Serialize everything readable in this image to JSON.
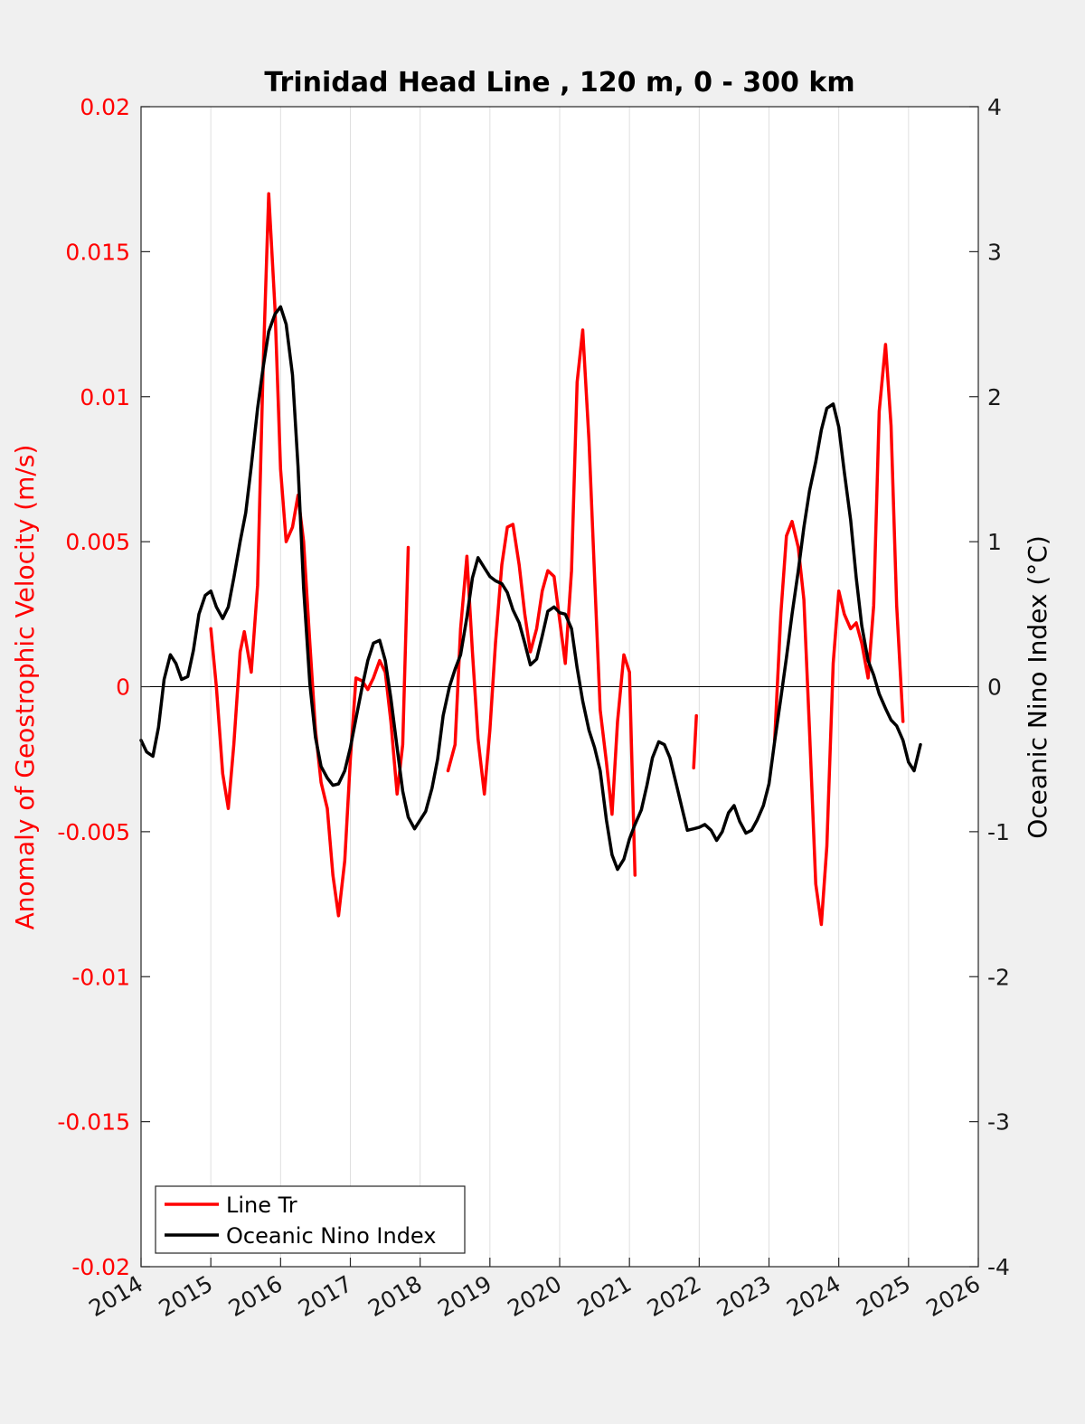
{
  "colors": {
    "background": "#f0f0f0",
    "plot_area": "#ffffff",
    "series_red": "#ff0000",
    "series_black": "#000000",
    "gridline": "#dfdfdf"
  },
  "chart_data": {
    "type": "line",
    "title": "Trinidad Head Line , 120 m, 0 - 300 km",
    "xlabel": "",
    "ylabel_left": "Anomaly of Geostrophic Velocity (m/s)",
    "ylabel_right": "Oceanic Nino Index (°C)",
    "xlim": [
      2014,
      2026
    ],
    "ylim_left": [
      -0.02,
      0.02
    ],
    "ylim_right": [
      -4,
      4
    ],
    "x_ticks": [
      "2014",
      "2015",
      "2016",
      "2017",
      "2018",
      "2019",
      "2020",
      "2021",
      "2022",
      "2023",
      "2024",
      "2025",
      "2026"
    ],
    "y_ticks_left": [
      "0.02",
      "0.015",
      "0.01",
      "0.005",
      "0",
      "-0.005",
      "-0.01",
      "-0.015",
      "-0.02"
    ],
    "y_ticks_right": [
      "4",
      "3",
      "2",
      "1",
      "0",
      "-1",
      "-2",
      "-3",
      "-4"
    ],
    "grid": "vertical",
    "zero_line": true,
    "legend_position": "bottom-left",
    "series": [
      {
        "name": "Line Tr",
        "axis": "left",
        "color": "#ff0000",
        "segments": [
          [
            [
              2015.0,
              0.002
            ],
            [
              2015.08,
              0.0
            ],
            [
              2015.17,
              -0.003
            ],
            [
              2015.25,
              -0.0042
            ],
            [
              2015.33,
              -0.002
            ],
            [
              2015.42,
              0.0012
            ],
            [
              2015.48,
              0.0019
            ],
            [
              2015.58,
              0.0005
            ],
            [
              2015.67,
              0.0035
            ],
            [
              2015.75,
              0.011
            ],
            [
              2015.83,
              0.017
            ],
            [
              2015.92,
              0.013
            ],
            [
              2016.0,
              0.0075
            ],
            [
              2016.08,
              0.005
            ],
            [
              2016.17,
              0.0055
            ],
            [
              2016.25,
              0.0066
            ],
            [
              2016.33,
              0.005
            ],
            [
              2016.42,
              0.0015
            ],
            [
              2016.5,
              -0.0015
            ],
            [
              2016.58,
              -0.0033
            ],
            [
              2016.67,
              -0.0042
            ],
            [
              2016.75,
              -0.0065
            ],
            [
              2016.83,
              -0.0079
            ],
            [
              2016.92,
              -0.006
            ],
            [
              2017.0,
              -0.0025
            ],
            [
              2017.08,
              0.0003
            ],
            [
              2017.17,
              0.0002
            ],
            [
              2017.25,
              -0.0001
            ],
            [
              2017.33,
              0.0003
            ],
            [
              2017.42,
              0.0009
            ],
            [
              2017.5,
              0.0005
            ],
            [
              2017.58,
              -0.0012
            ],
            [
              2017.67,
              -0.0037
            ],
            [
              2017.75,
              -0.002
            ],
            [
              2017.83,
              0.0048
            ]
          ],
          [
            [
              2018.4,
              -0.0029
            ],
            [
              2018.5,
              -0.002
            ],
            [
              2018.58,
              0.002
            ],
            [
              2018.67,
              0.0045
            ],
            [
              2018.75,
              0.0012
            ],
            [
              2018.83,
              -0.0018
            ],
            [
              2018.92,
              -0.0037
            ],
            [
              2019.0,
              -0.0015
            ],
            [
              2019.08,
              0.0015
            ],
            [
              2019.17,
              0.0042
            ],
            [
              2019.25,
              0.0055
            ],
            [
              2019.33,
              0.0056
            ],
            [
              2019.42,
              0.0042
            ],
            [
              2019.5,
              0.0025
            ],
            [
              2019.58,
              0.0012
            ],
            [
              2019.67,
              0.002
            ],
            [
              2019.75,
              0.0033
            ],
            [
              2019.83,
              0.004
            ],
            [
              2019.92,
              0.0038
            ],
            [
              2020.0,
              0.0023
            ],
            [
              2020.08,
              0.0008
            ],
            [
              2020.17,
              0.004
            ],
            [
              2020.25,
              0.0105
            ],
            [
              2020.33,
              0.0123
            ],
            [
              2020.42,
              0.0085
            ],
            [
              2020.5,
              0.0038
            ],
            [
              2020.58,
              -0.0008
            ],
            [
              2020.67,
              -0.0026
            ],
            [
              2020.75,
              -0.0044
            ],
            [
              2020.83,
              -0.0012
            ],
            [
              2020.92,
              0.0011
            ],
            [
              2021.0,
              0.0005
            ],
            [
              2021.08,
              -0.0065
            ]
          ],
          [
            [
              2021.92,
              -0.0028
            ],
            [
              2021.96,
              -0.001
            ]
          ],
          [
            [
              2023.08,
              -0.0019
            ],
            [
              2023.17,
              0.0025
            ],
            [
              2023.25,
              0.0052
            ],
            [
              2023.33,
              0.0057
            ],
            [
              2023.42,
              0.0048
            ],
            [
              2023.5,
              0.003
            ],
            [
              2023.58,
              -0.0015
            ],
            [
              2023.67,
              -0.0068
            ],
            [
              2023.75,
              -0.0082
            ],
            [
              2023.83,
              -0.0055
            ],
            [
              2023.92,
              0.0008
            ],
            [
              2024.0,
              0.0033
            ],
            [
              2024.08,
              0.0025
            ],
            [
              2024.17,
              0.002
            ],
            [
              2024.25,
              0.0022
            ],
            [
              2024.33,
              0.0015
            ],
            [
              2024.42,
              0.0003
            ],
            [
              2024.5,
              0.0028
            ],
            [
              2024.58,
              0.0095
            ],
            [
              2024.67,
              0.0118
            ],
            [
              2024.75,
              0.009
            ],
            [
              2024.83,
              0.0028
            ],
            [
              2024.92,
              -0.0012
            ]
          ]
        ]
      },
      {
        "name": "Oceanic Nino Index",
        "axis": "right",
        "color": "#000000",
        "segments": [
          [
            [
              2014.0,
              -0.37
            ],
            [
              2014.08,
              -0.45
            ],
            [
              2014.17,
              -0.48
            ],
            [
              2014.25,
              -0.28
            ],
            [
              2014.33,
              0.05
            ],
            [
              2014.42,
              0.22
            ],
            [
              2014.5,
              0.16
            ],
            [
              2014.58,
              0.05
            ],
            [
              2014.67,
              0.07
            ],
            [
              2014.75,
              0.25
            ],
            [
              2014.83,
              0.5
            ],
            [
              2014.92,
              0.63
            ],
            [
              2015.0,
              0.66
            ],
            [
              2015.08,
              0.55
            ],
            [
              2015.17,
              0.47
            ],
            [
              2015.25,
              0.55
            ],
            [
              2015.33,
              0.75
            ],
            [
              2015.42,
              1.0
            ],
            [
              2015.5,
              1.2
            ],
            [
              2015.58,
              1.52
            ],
            [
              2015.67,
              1.92
            ],
            [
              2015.75,
              2.2
            ],
            [
              2015.83,
              2.45
            ],
            [
              2015.92,
              2.57
            ],
            [
              2016.0,
              2.62
            ],
            [
              2016.08,
              2.5
            ],
            [
              2016.17,
              2.15
            ],
            [
              2016.25,
              1.52
            ],
            [
              2016.33,
              0.68
            ],
            [
              2016.42,
              0.02
            ],
            [
              2016.5,
              -0.35
            ],
            [
              2016.58,
              -0.55
            ],
            [
              2016.67,
              -0.63
            ],
            [
              2016.75,
              -0.68
            ],
            [
              2016.83,
              -0.67
            ],
            [
              2016.92,
              -0.58
            ],
            [
              2017.0,
              -0.42
            ],
            [
              2017.08,
              -0.22
            ],
            [
              2017.17,
              0.0
            ],
            [
              2017.25,
              0.18
            ],
            [
              2017.33,
              0.3
            ],
            [
              2017.42,
              0.32
            ],
            [
              2017.5,
              0.18
            ],
            [
              2017.58,
              -0.08
            ],
            [
              2017.67,
              -0.42
            ],
            [
              2017.75,
              -0.72
            ],
            [
              2017.83,
              -0.9
            ],
            [
              2017.92,
              -0.98
            ],
            [
              2018.0,
              -0.92
            ],
            [
              2018.08,
              -0.86
            ],
            [
              2018.17,
              -0.7
            ],
            [
              2018.25,
              -0.5
            ],
            [
              2018.33,
              -0.2
            ],
            [
              2018.42,
              0.0
            ],
            [
              2018.5,
              0.12
            ],
            [
              2018.58,
              0.22
            ],
            [
              2018.67,
              0.48
            ],
            [
              2018.75,
              0.75
            ],
            [
              2018.83,
              0.89
            ],
            [
              2018.92,
              0.82
            ],
            [
              2019.0,
              0.76
            ],
            [
              2019.08,
              0.73
            ],
            [
              2019.17,
              0.71
            ],
            [
              2019.25,
              0.65
            ],
            [
              2019.33,
              0.53
            ],
            [
              2019.42,
              0.44
            ],
            [
              2019.5,
              0.3
            ],
            [
              2019.58,
              0.15
            ],
            [
              2019.67,
              0.19
            ],
            [
              2019.75,
              0.35
            ],
            [
              2019.83,
              0.52
            ],
            [
              2019.92,
              0.55
            ],
            [
              2020.0,
              0.51
            ],
            [
              2020.08,
              0.5
            ],
            [
              2020.17,
              0.4
            ],
            [
              2020.25,
              0.13
            ],
            [
              2020.33,
              -0.1
            ],
            [
              2020.42,
              -0.3
            ],
            [
              2020.5,
              -0.42
            ],
            [
              2020.58,
              -0.58
            ],
            [
              2020.67,
              -0.92
            ],
            [
              2020.75,
              -1.16
            ],
            [
              2020.83,
              -1.26
            ],
            [
              2020.92,
              -1.19
            ],
            [
              2021.0,
              -1.05
            ],
            [
              2021.08,
              -0.95
            ],
            [
              2021.17,
              -0.85
            ],
            [
              2021.25,
              -0.68
            ],
            [
              2021.33,
              -0.49
            ],
            [
              2021.42,
              -0.38
            ],
            [
              2021.5,
              -0.4
            ],
            [
              2021.58,
              -0.49
            ],
            [
              2021.67,
              -0.67
            ],
            [
              2021.75,
              -0.83
            ],
            [
              2021.83,
              -0.99
            ],
            [
              2021.92,
              -0.98
            ],
            [
              2022.0,
              -0.97
            ],
            [
              2022.08,
              -0.95
            ],
            [
              2022.17,
              -0.99
            ],
            [
              2022.25,
              -1.06
            ],
            [
              2022.33,
              -1.0
            ],
            [
              2022.42,
              -0.87
            ],
            [
              2022.5,
              -0.82
            ],
            [
              2022.58,
              -0.93
            ],
            [
              2022.67,
              -1.01
            ],
            [
              2022.75,
              -0.99
            ],
            [
              2022.83,
              -0.92
            ],
            [
              2022.92,
              -0.82
            ],
            [
              2023.0,
              -0.67
            ],
            [
              2023.08,
              -0.38
            ],
            [
              2023.17,
              -0.08
            ],
            [
              2023.25,
              0.2
            ],
            [
              2023.33,
              0.5
            ],
            [
              2023.42,
              0.8
            ],
            [
              2023.5,
              1.1
            ],
            [
              2023.58,
              1.35
            ],
            [
              2023.67,
              1.55
            ],
            [
              2023.75,
              1.77
            ],
            [
              2023.83,
              1.92
            ],
            [
              2023.92,
              1.95
            ],
            [
              2024.0,
              1.79
            ],
            [
              2024.08,
              1.48
            ],
            [
              2024.17,
              1.15
            ],
            [
              2024.25,
              0.75
            ],
            [
              2024.33,
              0.42
            ],
            [
              2024.42,
              0.18
            ],
            [
              2024.5,
              0.08
            ],
            [
              2024.58,
              -0.05
            ],
            [
              2024.67,
              -0.15
            ],
            [
              2024.75,
              -0.23
            ],
            [
              2024.83,
              -0.27
            ],
            [
              2024.92,
              -0.37
            ],
            [
              2025.0,
              -0.52
            ],
            [
              2025.08,
              -0.58
            ],
            [
              2025.17,
              -0.4
            ]
          ]
        ]
      }
    ]
  }
}
